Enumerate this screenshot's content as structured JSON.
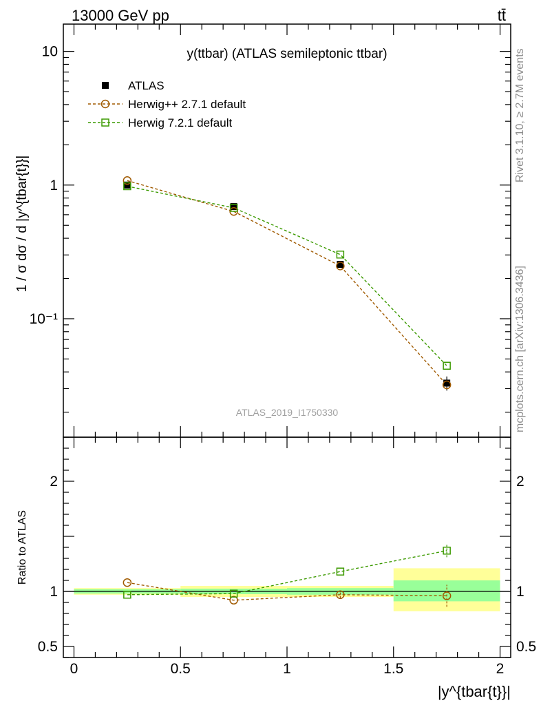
{
  "header": {
    "energy_label": "13000 GeV pp",
    "process_label": "tt̄"
  },
  "side_labels": {
    "rivet": "Rivet 3.1.10, ≥ 2.7M events",
    "mcplots": "mcplots.cern.ch [arXiv:1306.3436]"
  },
  "colors": {
    "atlas": "#000000",
    "herwigpp": "#a05a00",
    "herwig7": "#3c9a00",
    "band_inner": "#99ff99",
    "band_outer": "#ffff99",
    "watermark": "#a0a0a0"
  },
  "chart_data": [
    {
      "type": "line",
      "title": "y(ttbar) (ATLAS semileptonic ttbar)",
      "ylabel": "1 / σ dσ / d |y^{tbar{t}}|",
      "yscale": "log",
      "ylim": [
        0.013,
        16
      ],
      "xlim": [
        -0.05,
        2.05
      ],
      "yticks": [
        {
          "value": 0.1,
          "label": "10⁻¹"
        },
        {
          "value": 1,
          "label": "1"
        },
        {
          "value": 10,
          "label": "10"
        }
      ],
      "watermark": "ATLAS_2019_I1750330",
      "legend_position": "top-left",
      "x": [
        0.25,
        0.75,
        1.25,
        1.75
      ],
      "series": [
        {
          "name": "ATLAS",
          "marker": "filled-square",
          "values": [
            1.0,
            0.69,
            0.255,
            0.033
          ],
          "errors": [
            0.02,
            0.015,
            0.008,
            0.004
          ],
          "xerr": 0.25
        },
        {
          "name": "Herwig++ 2.7.1 default",
          "marker": "open-circle",
          "values": [
            1.08,
            0.635,
            0.248,
            0.032
          ]
        },
        {
          "name": "Herwig 7.2.1 default",
          "marker": "open-square",
          "values": [
            0.98,
            0.675,
            0.302,
            0.0445
          ]
        }
      ]
    },
    {
      "type": "line",
      "ylabel": "Ratio to ATLAS",
      "xlabel": "|y^{tbar{t}}|",
      "ylim": [
        0.4,
        2.4
      ],
      "xlim": [
        -0.05,
        2.05
      ],
      "yticks": [
        {
          "value": 0.5,
          "label": "0.5"
        },
        {
          "value": 1,
          "label": "1"
        },
        {
          "value": 2,
          "label": "2"
        }
      ],
      "xticks": [
        {
          "value": 0,
          "label": "0"
        },
        {
          "value": 0.5,
          "label": "0.5"
        },
        {
          "value": 1,
          "label": "1"
        },
        {
          "value": 1.5,
          "label": "1.5"
        },
        {
          "value": 2,
          "label": "2"
        }
      ],
      "x": [
        0.25,
        0.75,
        1.25,
        1.75
      ],
      "bands": [
        {
          "xlow": 0.0,
          "xhigh": 0.5,
          "inner": [
            0.98,
            1.02
          ],
          "outer": [
            0.97,
            1.03
          ]
        },
        {
          "xlow": 0.5,
          "xhigh": 1.0,
          "inner": [
            0.975,
            1.025
          ],
          "outer": [
            0.95,
            1.05
          ]
        },
        {
          "xlow": 1.0,
          "xhigh": 1.5,
          "inner": [
            0.97,
            1.03
          ],
          "outer": [
            0.95,
            1.05
          ]
        },
        {
          "xlow": 1.5,
          "xhigh": 2.0,
          "inner": [
            0.91,
            1.1
          ],
          "outer": [
            0.82,
            1.21
          ]
        }
      ],
      "series": [
        {
          "name": "Herwig++ 2.7.1 default",
          "marker": "open-circle",
          "values": [
            1.08,
            0.92,
            0.97,
            0.96
          ],
          "errors": [
            0,
            0,
            0.03,
            0.1
          ]
        },
        {
          "name": "Herwig 7.2.1 default",
          "marker": "open-square",
          "values": [
            0.97,
            0.98,
            1.18,
            1.37
          ],
          "errors": [
            0,
            0,
            0,
            0.06
          ]
        }
      ]
    }
  ]
}
